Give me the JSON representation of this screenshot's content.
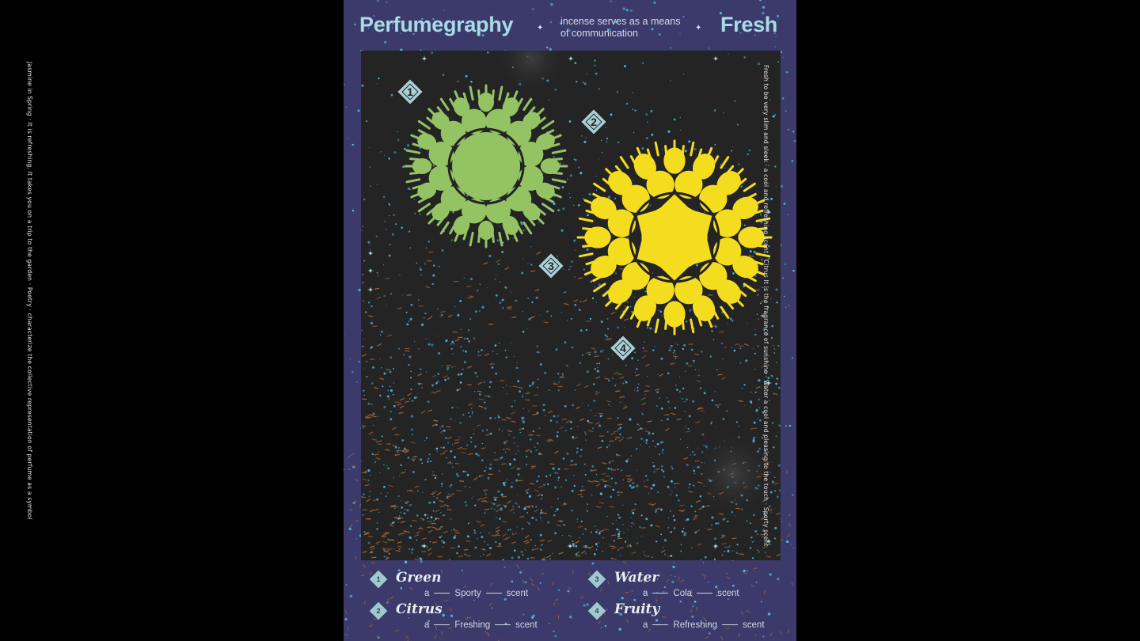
{
  "header": {
    "brand": "Perfumegraphy",
    "tagline_line1": "incense serves as a means",
    "tagline_line2": "of communication",
    "category": "Fresh"
  },
  "side_text": {
    "left": "Jasmine in Spring  ·  It is refreshing. It takes you on a trip to the garden  ·  Poetry  ·  characterize the collective representation of perfume as a symbol",
    "right": "Fresh  to be very slim and sleek  ·  a cool and refreshing scent  ·  Citrus  It is the fragrance of sunshine  ·  Water  a cool and pleasing to the touch  ·  Sporty scent"
  },
  "markers": [
    "1",
    "2",
    "3",
    "4"
  ],
  "legend": [
    {
      "number": "1",
      "name": "Green",
      "prefix": "a",
      "word": "Sporty",
      "suffix": "scent"
    },
    {
      "number": "2",
      "name": "Citrus",
      "prefix": "a",
      "word": "Freshing",
      "suffix": "scent"
    },
    {
      "number": "3",
      "name": "Water",
      "prefix": "a",
      "word": "Cola",
      "suffix": "scent"
    },
    {
      "number": "4",
      "name": "Fruity",
      "prefix": "a",
      "word": "Refreshing",
      "suffix": "scent"
    }
  ],
  "colors": {
    "poster_background": "#3b3a6a",
    "panel_background": "#242424",
    "green_motif": "#93c363",
    "yellow_motif": "#f4dc1e",
    "dots": "#52b8e6",
    "orange_strokes": "#b06a35",
    "marker": "#a9d0d6"
  },
  "icons": [
    "sparkle-star-icon",
    "number-diamond-icon",
    "green-mandala",
    "yellow-mandala"
  ]
}
